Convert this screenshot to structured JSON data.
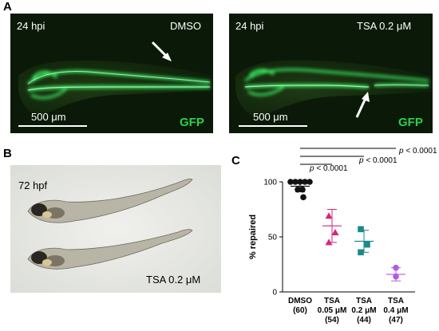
{
  "panels": {
    "a": {
      "letter": "A",
      "left_image": {
        "time": "24 hpi",
        "condition": "DMSO",
        "scale": "500 μm",
        "channel": "GFP"
      },
      "right_image": {
        "time": "24 hpi",
        "condition": "TSA 0.2 μM",
        "scale": "500 μm",
        "channel": "GFP"
      }
    },
    "b": {
      "letter": "B",
      "stage": "72 hpf",
      "condition": "TSA 0.2 μM"
    },
    "c": {
      "letter": "C"
    }
  },
  "colors": {
    "gfp": "#2fcf4a",
    "dmso": "#111111",
    "tsa_005": "#d6267f",
    "tsa_02": "#1a8a8a",
    "tsa_04": "#b45be0"
  },
  "chart_data": {
    "type": "scatter",
    "ylabel": "% repaired",
    "ylim": [
      0,
      100
    ],
    "yticks": [
      "0",
      "50",
      "100"
    ],
    "groups": [
      {
        "label_lines": [
          "DMSO",
          "(60)"
        ],
        "color": "#111111",
        "marker": "circle",
        "values": [
          100,
          100,
          100,
          100,
          100,
          93,
          93,
          86
        ],
        "mean": 96,
        "err": 5
      },
      {
        "label_lines": [
          "TSA",
          "0.05 μM",
          "(54)"
        ],
        "color": "#d6267f",
        "marker": "triangle",
        "values": [
          69,
          54,
          45
        ],
        "mean": 60,
        "err": 15
      },
      {
        "label_lines": [
          "TSA",
          "0.2 μM",
          "(44)"
        ],
        "color": "#1a8a8a",
        "marker": "square",
        "values": [
          57,
          43,
          36
        ],
        "mean": 46,
        "err": 10
      },
      {
        "label_lines": [
          "TSA",
          "0.4 μM",
          "(47)"
        ],
        "color": "#b45be0",
        "marker": "circle",
        "values": [
          22,
          14
        ],
        "mean": 16,
        "err": 6
      }
    ],
    "significance": [
      {
        "from": 0,
        "to": 1,
        "label": "p < 0.0001"
      },
      {
        "from": 0,
        "to": 2,
        "label": "p < 0.0001"
      },
      {
        "from": 0,
        "to": 3,
        "label": "p < 0.0001"
      }
    ]
  }
}
